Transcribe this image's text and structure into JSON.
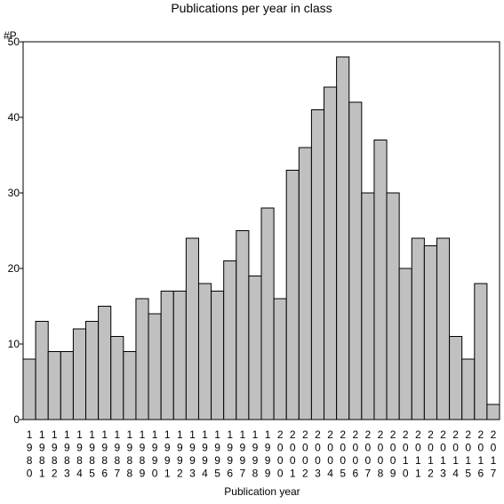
{
  "chart_data": {
    "type": "bar",
    "title": "Publications per year in class",
    "ylabel": "#P",
    "xlabel": "Publication year",
    "ylim": [
      0,
      50
    ],
    "yticks": [
      0,
      10,
      20,
      30,
      40,
      50
    ],
    "grid": false,
    "legend": "none",
    "colors": {
      "bar_fill": "#c0c0c0",
      "bar_stroke": "#000000",
      "axis": "#000000",
      "background": "#ffffff"
    },
    "categories": [
      "1980",
      "1981",
      "1982",
      "1983",
      "1984",
      "1985",
      "1986",
      "1987",
      "1988",
      "1989",
      "1990",
      "1991",
      "1992",
      "1993",
      "1994",
      "1995",
      "1996",
      "1997",
      "1998",
      "1999",
      "2000",
      "2001",
      "2002",
      "2003",
      "2004",
      "2005",
      "2006",
      "2007",
      "2008",
      "2009",
      "2010",
      "2011",
      "2012",
      "2013",
      "2014",
      "2015",
      "2016",
      "2017"
    ],
    "values": [
      8,
      13,
      9,
      9,
      12,
      13,
      15,
      11,
      9,
      16,
      14,
      17,
      17,
      24,
      18,
      17,
      21,
      25,
      19,
      28,
      16,
      33,
      36,
      41,
      44,
      48,
      42,
      30,
      37,
      30,
      20,
      24,
      23,
      24,
      11,
      8,
      18,
      2
    ]
  }
}
